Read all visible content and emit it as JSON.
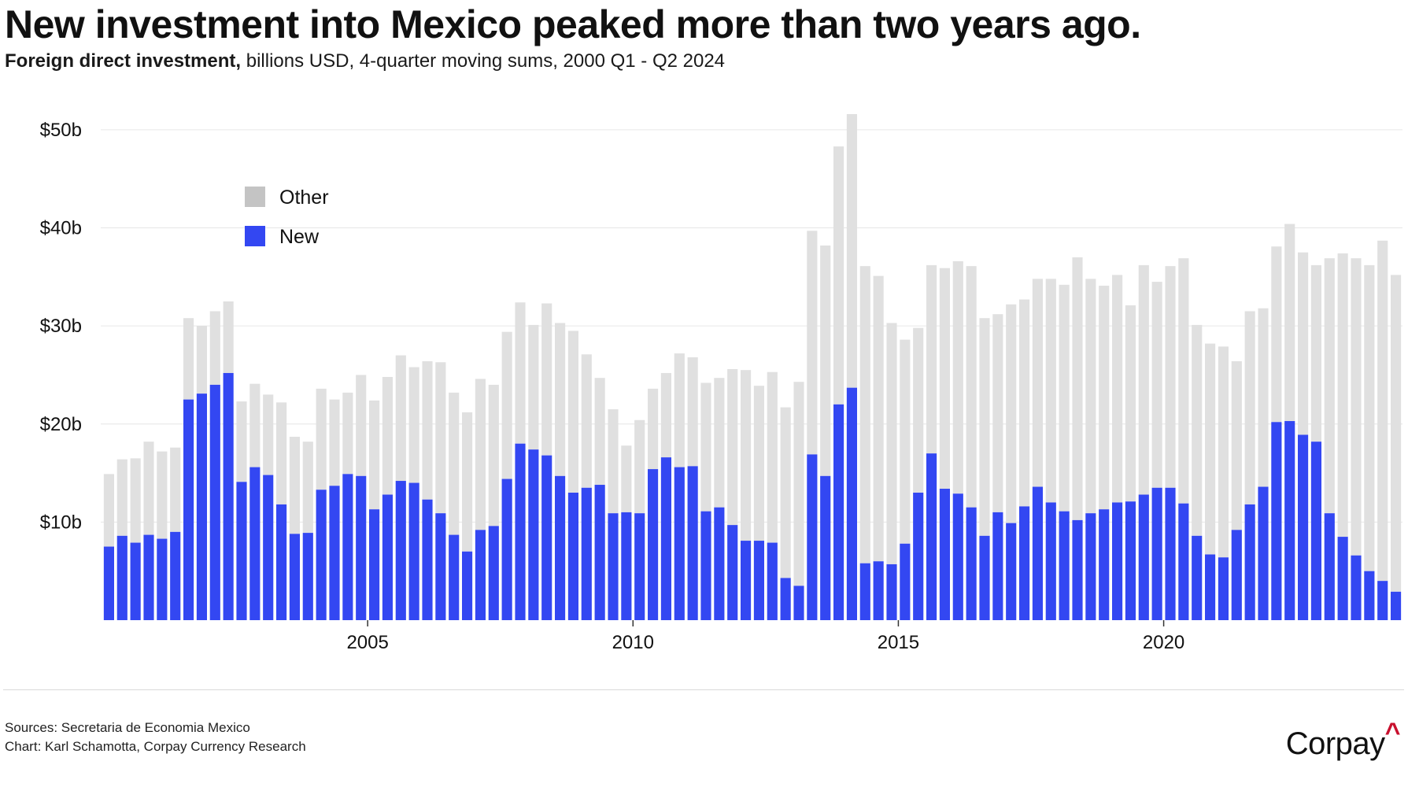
{
  "header": {
    "title": "New investment into Mexico peaked more than two years ago.",
    "subtitle_lead": "Foreign direct investment,",
    "subtitle_rest": " billions USD, 4-quarter moving sums, 2000 Q1 - Q2 2024"
  },
  "footer": {
    "sources": "Sources: Secretaria de Economia Mexico",
    "credit": "Chart: Karl Schamotta, Corpay Currency Research",
    "brand": "Corpay",
    "brand_mark": "^"
  },
  "colors": {
    "new": "#3347f2",
    "other": "#e0e0e0",
    "grid": "#e6e6e6"
  },
  "chart_data": {
    "type": "bar",
    "stacked": true,
    "x_start": "2000 Q1",
    "x_end": "2024 Q2",
    "series": [
      {
        "name": "New",
        "values": [
          7.5,
          8.6,
          7.9,
          8.7,
          8.3,
          9.0,
          22.5,
          23.1,
          24.0,
          25.2,
          14.1,
          15.6,
          14.8,
          11.8,
          8.8,
          8.9,
          13.3,
          13.7,
          14.9,
          14.7,
          11.3,
          12.8,
          14.2,
          14.0,
          12.3,
          10.9,
          8.7,
          7.0,
          9.2,
          9.6,
          14.4,
          18.0,
          17.4,
          16.8,
          14.7,
          13.0,
          13.5,
          13.8,
          10.9,
          11.0,
          10.9,
          15.4,
          16.6,
          15.6,
          15.7,
          11.1,
          11.5,
          9.7,
          8.1,
          8.1,
          7.9,
          4.3,
          3.5,
          16.9,
          14.7,
          22.0,
          23.7,
          5.8,
          6.0,
          5.7,
          7.8,
          13.0,
          17.0,
          13.4,
          12.9,
          11.5,
          8.6,
          11.0,
          9.9,
          11.6,
          13.6,
          12.0,
          11.1,
          10.2,
          10.9,
          11.3,
          12.0,
          12.1,
          12.8,
          13.5,
          13.5,
          11.9,
          8.6,
          6.7,
          6.4,
          9.2,
          11.8,
          13.6,
          20.2,
          20.3,
          18.9,
          18.2,
          10.9,
          8.5,
          6.6,
          5.0,
          4.0,
          2.9
        ]
      },
      {
        "name": "Other",
        "values": [
          7.4,
          7.8,
          8.6,
          9.5,
          8.9,
          8.6,
          8.3,
          6.9,
          7.5,
          7.3,
          8.2,
          8.5,
          8.2,
          10.4,
          9.9,
          9.3,
          10.3,
          8.8,
          8.3,
          10.3,
          11.1,
          12.0,
          12.8,
          11.8,
          14.1,
          15.4,
          14.5,
          14.2,
          15.4,
          14.4,
          15.0,
          14.4,
          12.7,
          15.5,
          15.6,
          16.5,
          13.6,
          10.9,
          10.6,
          6.8,
          9.5,
          8.2,
          8.6,
          11.6,
          11.1,
          13.1,
          13.2,
          15.9,
          17.4,
          15.8,
          17.4,
          17.4,
          20.8,
          22.8,
          23.5,
          26.3,
          27.9,
          30.3,
          29.1,
          24.6,
          20.8,
          16.8,
          19.2,
          22.5,
          23.7,
          24.6,
          22.2,
          20.2,
          22.3,
          21.1,
          21.2,
          22.8,
          23.1,
          26.8,
          23.9,
          22.8,
          23.2,
          20.0,
          23.4,
          21.0,
          22.6,
          25.0,
          21.5,
          21.5,
          21.5,
          17.2,
          19.7,
          18.2,
          17.9,
          20.1,
          18.6,
          18.0,
          26.0,
          28.9,
          30.3,
          31.2,
          34.7,
          32.3
        ]
      }
    ],
    "x_ticks": [
      {
        "label": "2005",
        "index": 20
      },
      {
        "label": "2010",
        "index": 40
      },
      {
        "label": "2015",
        "index": 60
      },
      {
        "label": "2020",
        "index": 80
      }
    ],
    "y_ticks": [
      {
        "value": 10,
        "label": "$10b"
      },
      {
        "value": 20,
        "label": "$20b"
      },
      {
        "value": 30,
        "label": "$30b"
      },
      {
        "value": 40,
        "label": "$40b"
      },
      {
        "value": 50,
        "label": "$50b"
      }
    ],
    "ylim": [
      0,
      52
    ],
    "grid": true,
    "legend_position": "top-left",
    "legend": [
      {
        "label": "Other",
        "color": "#c4c4c4"
      },
      {
        "label": "New",
        "color": "#3347f2"
      }
    ]
  }
}
